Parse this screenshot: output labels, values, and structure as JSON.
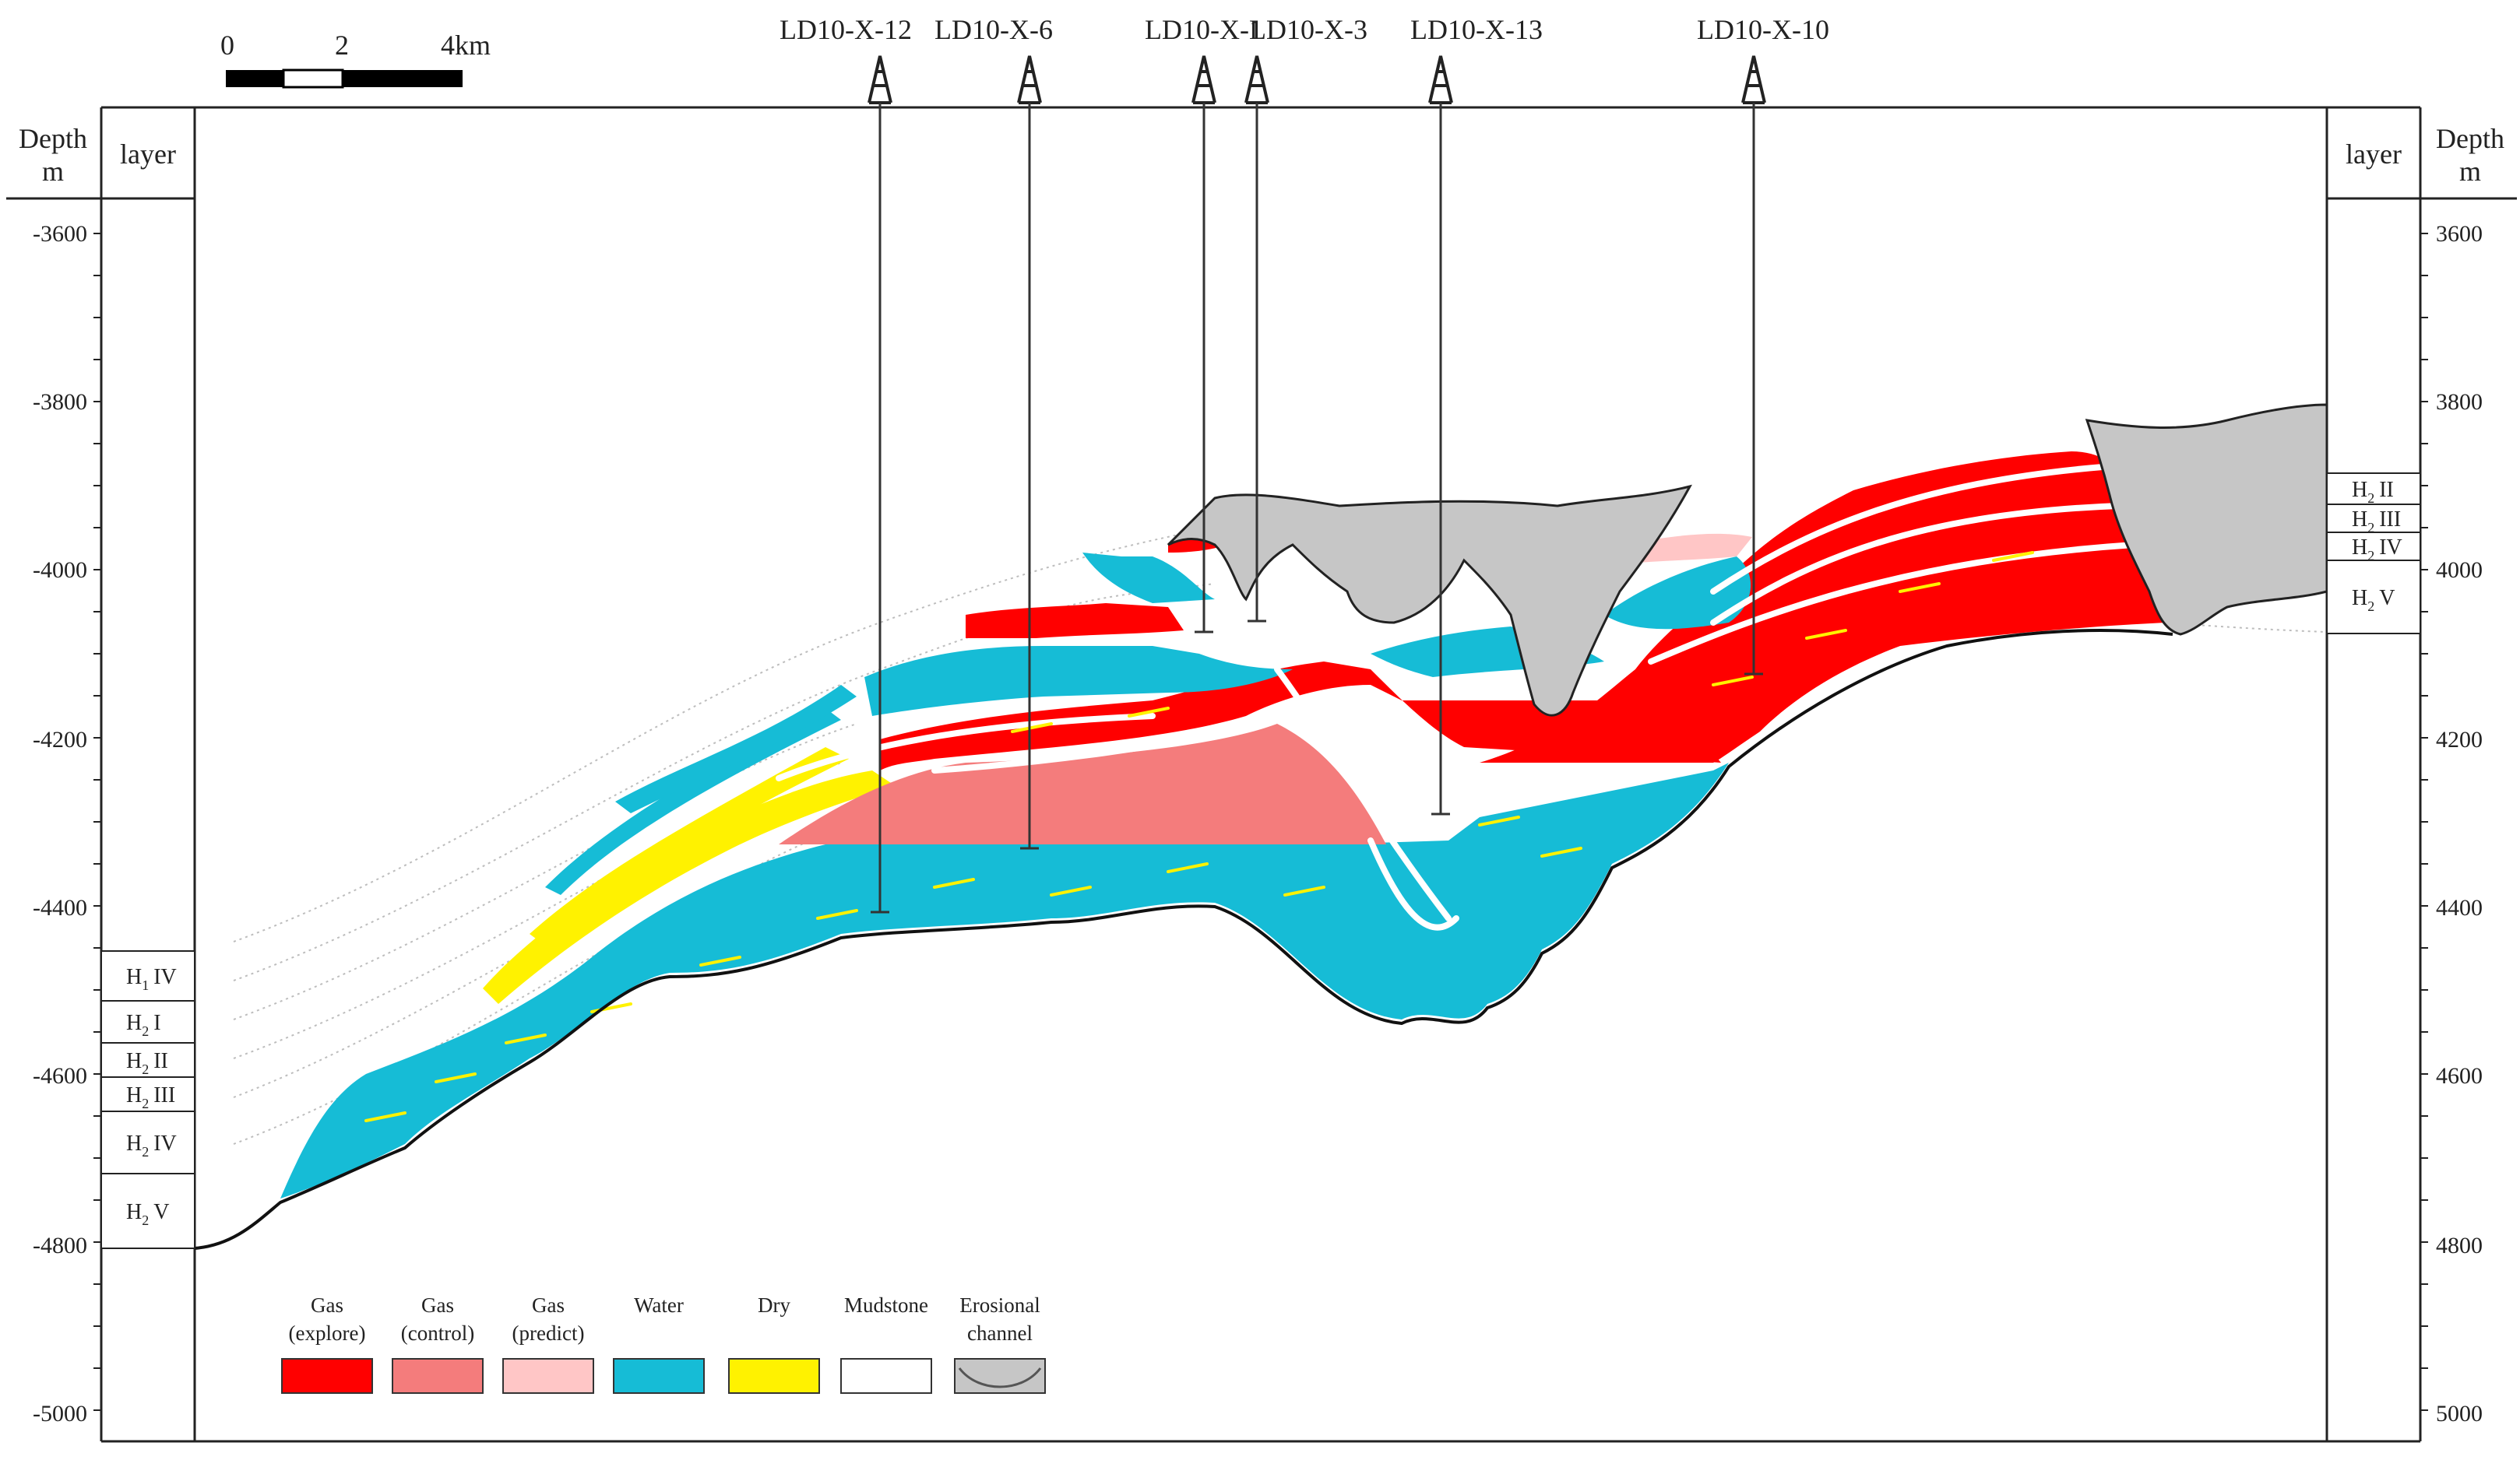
{
  "scale_bar": {
    "labels": [
      "0",
      "2",
      "4km"
    ]
  },
  "depth_axis": {
    "header_depth": "Depth",
    "header_unit": "m",
    "header_layer": "layer",
    "ticks": [
      "-3600",
      "-3800",
      "-4000",
      "-4200",
      "-4400",
      "-4600",
      "-4800",
      "-5000"
    ],
    "right_ticks": [
      "3600",
      "3800",
      "4000",
      "4200",
      "4400",
      "4600",
      "4800",
      "5000"
    ]
  },
  "wells": [
    {
      "name": "LD10-X-12"
    },
    {
      "name": "LD10-X-6"
    },
    {
      "name": "LD10-X-1"
    },
    {
      "name": "LD10-X-3"
    },
    {
      "name": "LD10-X-13"
    },
    {
      "name": "LD10-X-10"
    }
  ],
  "left_layers": [
    {
      "main": "H",
      "sub": "1",
      "roman": "IV"
    },
    {
      "main": "H",
      "sub": "2",
      "roman": "I"
    },
    {
      "main": "H",
      "sub": "2",
      "roman": "II"
    },
    {
      "main": "H",
      "sub": "2",
      "roman": "III"
    },
    {
      "main": "H",
      "sub": "2",
      "roman": "IV"
    },
    {
      "main": "H",
      "sub": "2",
      "roman": "V"
    }
  ],
  "right_layers": [
    {
      "main": "H",
      "sub": "2",
      "roman": "II"
    },
    {
      "main": "H",
      "sub": "2",
      "roman": "III"
    },
    {
      "main": "H",
      "sub": "2",
      "roman": "IV"
    },
    {
      "main": "H",
      "sub": "2",
      "roman": "V"
    }
  ],
  "legend": [
    {
      "line1": "Gas",
      "line2": "(explore)",
      "color": "#ff0000"
    },
    {
      "line1": "Gas",
      "line2": "(control)",
      "color": "#f47c7c"
    },
    {
      "line1": "Gas",
      "line2": "(predict)",
      "color": "#ffc6c6"
    },
    {
      "line1": "Water",
      "line2": "",
      "color": "#16bcd6"
    },
    {
      "line1": "Dry",
      "line2": "",
      "color": "#fff200"
    },
    {
      "line1": "Mudstone",
      "line2": "",
      "color": "#ffffff"
    },
    {
      "line1": "Erosional",
      "line2": "channel",
      "color": "#c6c6c6"
    }
  ],
  "colors": {
    "gas_explore": "#ff0000",
    "gas_control": "#f47c7c",
    "gas_predict": "#ffc6c6",
    "water": "#16bcd6",
    "dry": "#fff200",
    "channel": "#c6c6c6"
  }
}
